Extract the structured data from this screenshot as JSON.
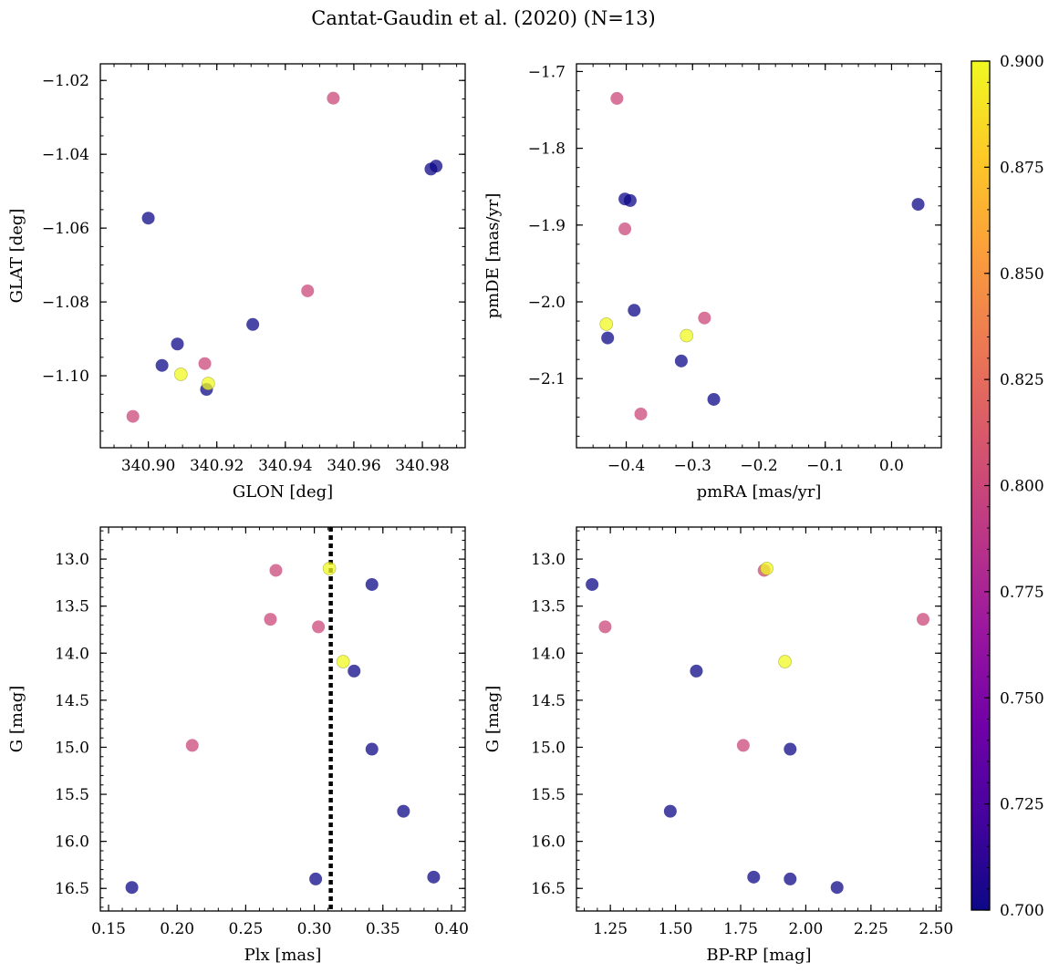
{
  "chart_data": {
    "type": "scatter",
    "title": "Cantat-Gaudin et al. (2020) (N=13)",
    "colorbar": {
      "range": [
        0.7,
        0.9
      ],
      "ticks": [
        "0.700",
        "0.725",
        "0.750",
        "0.775",
        "0.800",
        "0.825",
        "0.850",
        "0.875",
        "0.900"
      ],
      "colormap": "plasma",
      "stops": [
        "#0d0887",
        "#46039f",
        "#7201a8",
        "#9c179e",
        "#bd3786",
        "#d8576b",
        "#ed7953",
        "#fb9f3a",
        "#fdca26",
        "#f0f921"
      ]
    },
    "marker_alpha": 0.75,
    "panels": [
      {
        "id": "glon-glat",
        "xlabel": "GLON [deg]",
        "ylabel": "GLAT [deg]",
        "xlim": [
          340.886,
          340.9925
        ],
        "ylim": [
          -1.1195,
          -1.0155
        ],
        "y_inverted": false,
        "xticks": [
          "340.90",
          "340.92",
          "340.94",
          "340.96",
          "340.98"
        ],
        "xtick_values": [
          340.9,
          340.92,
          340.94,
          340.96,
          340.98
        ],
        "yticks": [
          "−1.02",
          "−1.04",
          "−1.06",
          "−1.08",
          "−1.10"
        ],
        "ytick_values": [
          -1.02,
          -1.04,
          -1.06,
          -1.08,
          -1.1
        ],
        "xminor": 0.005,
        "yminor": 0.005,
        "vline": null,
        "points": [
          {
            "x": 340.9,
            "y": -1.0573,
            "p": 0.7
          },
          {
            "x": 340.904,
            "y": -1.0972,
            "p": 0.7
          },
          {
            "x": 340.9085,
            "y": -1.0914,
            "p": 0.7
          },
          {
            "x": 340.917,
            "y": -1.1037,
            "p": 0.7
          },
          {
            "x": 340.9305,
            "y": -1.0861,
            "p": 0.7
          },
          {
            "x": 340.9825,
            "y": -1.044,
            "p": 0.7
          },
          {
            "x": 340.984,
            "y": -1.0432,
            "p": 0.7
          },
          {
            "x": 340.8955,
            "y": -1.111,
            "p": 0.8
          },
          {
            "x": 340.9165,
            "y": -1.0967,
            "p": 0.8
          },
          {
            "x": 340.9465,
            "y": -1.077,
            "p": 0.8
          },
          {
            "x": 340.954,
            "y": -1.0248,
            "p": 0.8
          },
          {
            "x": 340.9095,
            "y": -1.0996,
            "p": 0.9
          },
          {
            "x": 340.9175,
            "y": -1.1021,
            "p": 0.9
          }
        ]
      },
      {
        "id": "pm",
        "xlabel": "pmRA [mas/yr]",
        "ylabel": "pmDE [mas/yr]",
        "xlim": [
          -0.475,
          0.075
        ],
        "ylim": [
          -2.19,
          -1.69
        ],
        "y_inverted": false,
        "xticks": [
          "−0.4",
          "−0.3",
          "−0.2",
          "−0.1",
          "0.0"
        ],
        "xtick_values": [
          -0.4,
          -0.3,
          -0.2,
          -0.1,
          0.0
        ],
        "yticks": [
          "−1.7",
          "−1.8",
          "−1.9",
          "−2.0",
          "−2.1"
        ],
        "ytick_values": [
          -1.7,
          -1.8,
          -1.9,
          -2.0,
          -2.1
        ],
        "xminor": 0.025,
        "yminor": 0.025,
        "vline": null,
        "points": [
          {
            "x": -0.402,
            "y": -1.866,
            "p": 0.7
          },
          {
            "x": -0.394,
            "y": -1.868,
            "p": 0.7
          },
          {
            "x": -0.388,
            "y": -2.011,
            "p": 0.7
          },
          {
            "x": -0.428,
            "y": -2.047,
            "p": 0.7
          },
          {
            "x": -0.317,
            "y": -2.077,
            "p": 0.7
          },
          {
            "x": -0.268,
            "y": -2.127,
            "p": 0.7
          },
          {
            "x": 0.04,
            "y": -1.873,
            "p": 0.7
          },
          {
            "x": -0.414,
            "y": -1.735,
            "p": 0.8
          },
          {
            "x": -0.402,
            "y": -1.905,
            "p": 0.8
          },
          {
            "x": -0.282,
            "y": -2.021,
            "p": 0.8
          },
          {
            "x": -0.378,
            "y": -2.146,
            "p": 0.8
          },
          {
            "x": -0.43,
            "y": -2.029,
            "p": 0.9
          },
          {
            "x": -0.309,
            "y": -2.044,
            "p": 0.9
          }
        ]
      },
      {
        "id": "plx-g",
        "xlabel": "Plx [mas]",
        "ylabel": "G [mag]",
        "xlim": [
          0.144,
          0.41
        ],
        "ylim": [
          12.66,
          16.74
        ],
        "y_inverted": true,
        "xticks": [
          "0.15",
          "0.20",
          "0.25",
          "0.30",
          "0.35",
          "0.40"
        ],
        "xtick_values": [
          0.15,
          0.2,
          0.25,
          0.3,
          0.35,
          0.4
        ],
        "yticks": [
          "13.0",
          "13.5",
          "14.0",
          "14.5",
          "15.0",
          "15.5",
          "16.0",
          "16.5"
        ],
        "ytick_values": [
          13.0,
          13.5,
          14.0,
          14.5,
          15.0,
          15.5,
          16.0,
          16.5
        ],
        "xminor": 0.01,
        "yminor": 0.1,
        "vline": 0.312,
        "points": [
          {
            "x": 0.342,
            "y": 13.27,
            "p": 0.7
          },
          {
            "x": 0.329,
            "y": 14.19,
            "p": 0.7
          },
          {
            "x": 0.342,
            "y": 15.02,
            "p": 0.7
          },
          {
            "x": 0.365,
            "y": 15.68,
            "p": 0.7
          },
          {
            "x": 0.167,
            "y": 16.49,
            "p": 0.7
          },
          {
            "x": 0.301,
            "y": 16.4,
            "p": 0.7
          },
          {
            "x": 0.387,
            "y": 16.38,
            "p": 0.7
          },
          {
            "x": 0.272,
            "y": 13.12,
            "p": 0.8
          },
          {
            "x": 0.268,
            "y": 13.64,
            "p": 0.8
          },
          {
            "x": 0.303,
            "y": 13.72,
            "p": 0.8
          },
          {
            "x": 0.211,
            "y": 14.98,
            "p": 0.8
          },
          {
            "x": 0.311,
            "y": 13.1,
            "p": 0.9
          },
          {
            "x": 0.321,
            "y": 14.09,
            "p": 0.9
          }
        ]
      },
      {
        "id": "bprp-g",
        "xlabel": "BP-RP [mag]",
        "ylabel": "G [mag]",
        "xlim": [
          1.12,
          2.52
        ],
        "ylim": [
          12.66,
          16.74
        ],
        "y_inverted": true,
        "xticks": [
          "1.25",
          "1.50",
          "1.75",
          "2.00",
          "2.25",
          "2.50"
        ],
        "xtick_values": [
          1.25,
          1.5,
          1.75,
          2.0,
          2.25,
          2.5
        ],
        "yticks": [
          "13.0",
          "13.5",
          "14.0",
          "14.5",
          "15.0",
          "15.5",
          "16.0",
          "16.5"
        ],
        "ytick_values": [
          13.0,
          13.5,
          14.0,
          14.5,
          15.0,
          15.5,
          16.0,
          16.5
        ],
        "xminor": 0.05,
        "yminor": 0.1,
        "vline": null,
        "points": [
          {
            "x": 1.18,
            "y": 13.27,
            "p": 0.7
          },
          {
            "x": 1.58,
            "y": 14.19,
            "p": 0.7
          },
          {
            "x": 1.94,
            "y": 15.02,
            "p": 0.7
          },
          {
            "x": 1.48,
            "y": 15.68,
            "p": 0.7
          },
          {
            "x": 2.12,
            "y": 16.49,
            "p": 0.7
          },
          {
            "x": 1.8,
            "y": 16.38,
            "p": 0.7
          },
          {
            "x": 1.94,
            "y": 16.4,
            "p": 0.7
          },
          {
            "x": 1.84,
            "y": 13.12,
            "p": 0.8
          },
          {
            "x": 1.23,
            "y": 13.72,
            "p": 0.8
          },
          {
            "x": 2.45,
            "y": 13.64,
            "p": 0.8
          },
          {
            "x": 1.76,
            "y": 14.98,
            "p": 0.8
          },
          {
            "x": 1.85,
            "y": 13.1,
            "p": 0.9
          },
          {
            "x": 1.92,
            "y": 14.09,
            "p": 0.9
          }
        ]
      }
    ]
  }
}
